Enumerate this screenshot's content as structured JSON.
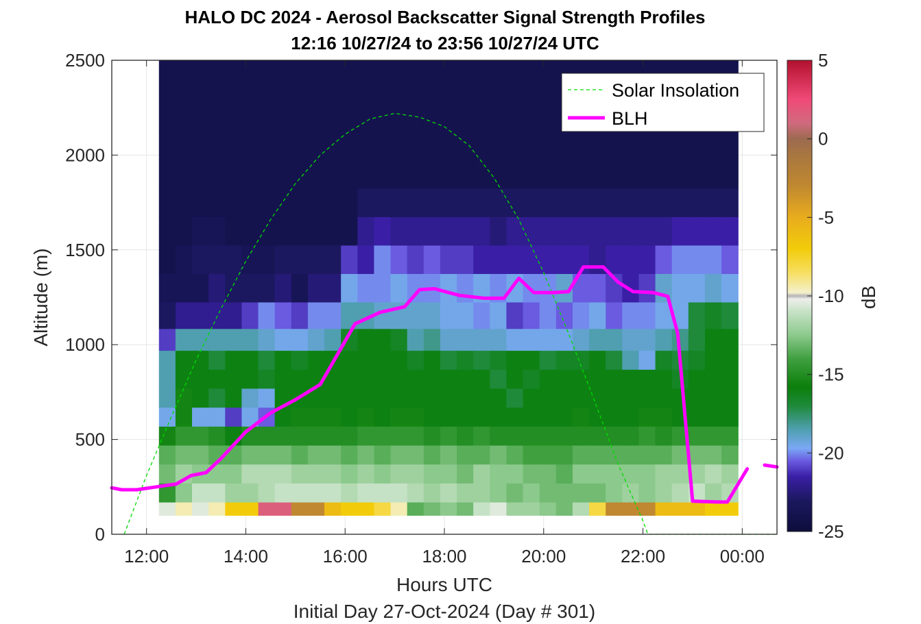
{
  "chart_data": {
    "type": "heatmap",
    "title": "HALO DC 2024 - Aerosol Backscatter Signal Strength Profiles",
    "subtitle": "12:16 10/27/24 to 23:56 10/27/24  UTC",
    "xlabel": "Hours UTC",
    "xlabel2": "Initial Day 27-Oct-2024 (Day # 301)",
    "ylabel": "Altitude (m)",
    "colorbar_label": "dB",
    "xlim_hours": [
      11.3,
      24.7
    ],
    "ylim": [
      0,
      2500
    ],
    "x_ticks": [
      {
        "v": 12,
        "label": "12:00"
      },
      {
        "v": 14,
        "label": "14:00"
      },
      {
        "v": 16,
        "label": "16:00"
      },
      {
        "v": 18,
        "label": "18:00"
      },
      {
        "v": 20,
        "label": "20:00"
      },
      {
        "v": 22,
        "label": "22:00"
      },
      {
        "v": 24,
        "label": "00:00"
      }
    ],
    "y_ticks": [
      {
        "v": 0,
        "label": "0"
      },
      {
        "v": 500,
        "label": "500"
      },
      {
        "v": 1000,
        "label": "1000"
      },
      {
        "v": 1500,
        "label": "1500"
      },
      {
        "v": 2000,
        "label": "2000"
      },
      {
        "v": 2500,
        "label": "2500"
      }
    ],
    "colorbar": {
      "range": [
        -25,
        5
      ],
      "ticks": [
        {
          "v": 5,
          "label": "5"
        },
        {
          "v": 0,
          "label": "0"
        },
        {
          "v": -5,
          "label": "-5"
        },
        {
          "v": -10,
          "label": "-10"
        },
        {
          "v": -15,
          "label": "-15"
        },
        {
          "v": -20,
          "label": "-20"
        },
        {
          "v": -25,
          "label": "-25"
        }
      ],
      "stops": [
        {
          "v": -25,
          "c": "#0d0d3c"
        },
        {
          "v": -23,
          "c": "#1c1860"
        },
        {
          "v": -21.5,
          "c": "#3a1fa6"
        },
        {
          "v": -20.5,
          "c": "#6a5be0"
        },
        {
          "v": -19.7,
          "c": "#7aa8f5"
        },
        {
          "v": -18.5,
          "c": "#4f9fb0"
        },
        {
          "v": -17,
          "c": "#1e8a3a"
        },
        {
          "v": -15.8,
          "c": "#0b7f0b"
        },
        {
          "v": -14,
          "c": "#40a040"
        },
        {
          "v": -12.5,
          "c": "#8cc98c"
        },
        {
          "v": -11,
          "c": "#c6e2c6"
        },
        {
          "v": -10.2,
          "c": "#eeeeea"
        },
        {
          "v": -10,
          "c": "#b4b4b4"
        },
        {
          "v": -9.8,
          "c": "#f4f0cc"
        },
        {
          "v": -8.5,
          "c": "#f6de60"
        },
        {
          "v": -7,
          "c": "#f2cc0a"
        },
        {
          "v": -5,
          "c": "#e8ac1e"
        },
        {
          "v": -3,
          "c": "#c08830"
        },
        {
          "v": -1,
          "c": "#a87640"
        },
        {
          "v": 0,
          "c": "#9c6a50"
        },
        {
          "v": 1,
          "c": "#d06a7e"
        },
        {
          "v": 2.5,
          "c": "#f04a78"
        },
        {
          "v": 5,
          "c": "#b2102e"
        }
      ]
    },
    "heatmap": {
      "x_start": 12.25,
      "x_step": 0.3333,
      "alt_levels": [
        120,
        220,
        320,
        420,
        520,
        620,
        720,
        820,
        920,
        1020,
        1150,
        1300,
        1450,
        1600,
        1750,
        1900,
        2050,
        2200,
        2350,
        2475
      ],
      "columns": [
        [
          -10.5,
          -14.5,
          -13,
          -13.5,
          -15.5,
          -19.5,
          -18.5,
          -18.5,
          -18.5,
          -21,
          -23,
          -23.5,
          -24,
          -24,
          -24,
          -24,
          -24,
          -24,
          -24,
          -24
        ],
        [
          -9.5,
          -12.5,
          -12,
          -13,
          -14.5,
          -15.5,
          -15.5,
          -16,
          -16,
          -18.5,
          -22,
          -23.5,
          -23.5,
          -24,
          -24,
          -24,
          -24,
          -24,
          -24,
          -24
        ],
        [
          -10.5,
          -11,
          -12.5,
          -13,
          -14.5,
          -19.5,
          -16,
          -16,
          -16,
          -18.5,
          -22,
          -23.5,
          -23,
          -23.5,
          -24,
          -24,
          -24,
          -24,
          -24,
          -24
        ],
        [
          -9.5,
          -11,
          -12.5,
          -13.5,
          -15,
          -19.5,
          -17,
          -16,
          -17,
          -18.5,
          -22,
          -22.5,
          -23,
          -23.5,
          -24,
          -24,
          -24,
          -24,
          -24,
          -24
        ],
        [
          -7,
          -12,
          -12.5,
          -13.5,
          -16,
          -21,
          -16,
          -16,
          -16,
          -18.5,
          -22,
          -23,
          -23,
          -24,
          -24,
          -24,
          -24,
          -24,
          -24,
          -24
        ],
        [
          -7,
          -12,
          -11.5,
          -13,
          -15,
          -19.5,
          -19,
          -16,
          -16,
          -18.5,
          -21,
          -23,
          -23.5,
          -24,
          -24,
          -24,
          -24,
          -24,
          -24,
          -24
        ],
        [
          1.5,
          -11.5,
          -11.5,
          -13,
          -15,
          -20.5,
          -19.5,
          -16.5,
          -17,
          -19,
          -20,
          -23,
          -23.5,
          -24,
          -24,
          -24,
          -24,
          -24,
          -24,
          -24
        ],
        [
          1.5,
          -11,
          -11.5,
          -13,
          -15,
          -16,
          -16,
          -16,
          -16,
          -19.5,
          -20.5,
          -22.5,
          -23,
          -24,
          -24,
          -24,
          -24,
          -24,
          -24,
          -24
        ],
        [
          -3,
          -11,
          -12,
          -13.5,
          -15,
          -15.5,
          -16,
          -16,
          -16.5,
          -19.5,
          -21,
          -23.5,
          -23,
          -24,
          -24,
          -24,
          -24,
          -24,
          -24,
          -24
        ],
        [
          -3,
          -11,
          -12,
          -13,
          -15,
          -15.5,
          -16,
          -16,
          -16,
          -19,
          -20,
          -22.5,
          -23,
          -24,
          -24,
          -24,
          -24,
          -24,
          -24,
          -24
        ],
        [
          -6,
          -11,
          -12,
          -13,
          -15,
          -15.5,
          -16,
          -16,
          -16,
          -18.5,
          -20,
          -22.5,
          -23,
          -24,
          -24,
          -24,
          -24,
          -24,
          -24,
          -24
        ],
        [
          -7,
          -11.5,
          -12.5,
          -13.5,
          -15,
          -16,
          -16,
          -16,
          -16,
          -16.5,
          -18.5,
          -19.5,
          -21,
          -24,
          -24,
          -24,
          -24,
          -24,
          -24,
          -24
        ],
        [
          -7,
          -11,
          -12,
          -13,
          -14.5,
          -15.5,
          -16,
          -16,
          -16,
          -16,
          -18.5,
          -20,
          -21.5,
          -22,
          -23,
          -24,
          -24,
          -24,
          -24,
          -24
        ],
        [
          -8,
          -11,
          -12.5,
          -13.5,
          -14.5,
          -16,
          -16,
          -16,
          -16,
          -16,
          -19,
          -20,
          -20,
          -21.5,
          -23,
          -24,
          -24,
          -24,
          -24,
          -24
        ],
        [
          -9.5,
          -11,
          -12,
          -13,
          -14.5,
          -15.5,
          -16,
          -16,
          -16,
          -16.5,
          -19,
          -19.5,
          -20.5,
          -22,
          -23,
          -24,
          -24,
          -24,
          -24,
          -24
        ],
        [
          -13.5,
          -11.5,
          -12,
          -13,
          -14.5,
          -15.5,
          -16,
          -16,
          -16.5,
          -18.5,
          -19,
          -20,
          -21,
          -22,
          -23,
          -24,
          -24,
          -24,
          -24,
          -24
        ],
        [
          -13,
          -12,
          -12.5,
          -13.5,
          -15,
          -16,
          -16,
          -16,
          -16,
          -18,
          -19,
          -20,
          -20.5,
          -22,
          -23,
          -24,
          -24,
          -24,
          -24,
          -24
        ],
        [
          -12.5,
          -11.5,
          -12.5,
          -13,
          -14.5,
          -16,
          -16,
          -16,
          -17,
          -19,
          -19.5,
          -19.5,
          -21,
          -22,
          -23,
          -24,
          -24,
          -24,
          -24,
          -24
        ],
        [
          -13,
          -12,
          -13,
          -13.5,
          -15,
          -16,
          -16,
          -16,
          -16.5,
          -19,
          -19.5,
          -20,
          -21,
          -22,
          -23,
          -24,
          -24,
          -24,
          -24,
          -24
        ],
        [
          -11,
          -12,
          -12,
          -13.5,
          -14.5,
          -16,
          -16,
          -16,
          -17,
          -19,
          -20,
          -19.5,
          -21.5,
          -22,
          -23,
          -24,
          -24,
          -24,
          -24,
          -24
        ],
        [
          -10.5,
          -12.5,
          -12.5,
          -13,
          -15,
          -16,
          -16,
          -17,
          -16.5,
          -19,
          -19.5,
          -20,
          -21.5,
          -22.5,
          -23,
          -24,
          -24,
          -24,
          -24,
          -24
        ],
        [
          -12,
          -13,
          -12.5,
          -13.5,
          -15,
          -16,
          -17,
          -16,
          -16,
          -19.5,
          -21,
          -19.5,
          -21.5,
          -22,
          -23,
          -24,
          -24,
          -24,
          -24,
          -24
        ],
        [
          -12,
          -12.5,
          -13,
          -14,
          -15,
          -16,
          -16,
          -16.5,
          -16,
          -19.5,
          -20.5,
          -20,
          -21.5,
          -22,
          -23,
          -24,
          -24,
          -24,
          -24,
          -24
        ],
        [
          -12.5,
          -13,
          -13,
          -14,
          -15,
          -16,
          -16,
          -16,
          -17,
          -19.5,
          -20,
          -20,
          -21.5,
          -22,
          -23,
          -24,
          -24,
          -24,
          -24,
          -24
        ],
        [
          -13,
          -13,
          -13.5,
          -14,
          -15,
          -16,
          -16,
          -16,
          -16.5,
          -19.5,
          -20.5,
          -19,
          -21.5,
          -22,
          -23,
          -24,
          -24,
          -24,
          -24,
          -24
        ],
        [
          -11.5,
          -13,
          -12.5,
          -13.5,
          -15,
          -15.5,
          -16,
          -16,
          -16.5,
          -19,
          -20,
          -20.5,
          -21.5,
          -22,
          -23,
          -24,
          -24,
          -24,
          -24,
          -24
        ],
        [
          -8,
          -13,
          -12.5,
          -13.5,
          -15,
          -16,
          -16,
          -16,
          -16,
          -18.5,
          -19.5,
          -20.5,
          -22,
          -22,
          -23,
          -24,
          -24,
          -24,
          -24,
          -24
        ],
        [
          -3,
          -12.5,
          -12.5,
          -13.5,
          -15,
          -16,
          -16,
          -16,
          -17,
          -18.5,
          -20.5,
          -21,
          -21.5,
          -22,
          -23,
          -24,
          -24,
          -24,
          -24,
          -24
        ],
        [
          -3,
          -12,
          -12.5,
          -13.5,
          -15,
          -16,
          -16,
          -16,
          -18.5,
          -19,
          -20,
          -21.5,
          -21.5,
          -22,
          -23,
          -24,
          -24,
          -24,
          -24,
          -24
        ],
        [
          -3,
          -12.5,
          -12.5,
          -13.5,
          -14.5,
          -15.5,
          -16,
          -16,
          -19.5,
          -19,
          -20,
          -21,
          -21.5,
          -22,
          -23,
          -24,
          -24,
          -24,
          -24,
          -24
        ],
        [
          -6,
          -12,
          -12,
          -13.5,
          -15,
          -15.5,
          -16,
          -16,
          -16.5,
          -18.5,
          -19.5,
          -19,
          -20.5,
          -22,
          -23,
          -24,
          -24,
          -24,
          -24,
          -24
        ],
        [
          -6,
          -11.5,
          -12,
          -13,
          -14.5,
          -16,
          -16,
          -16.5,
          -17,
          -18,
          -19.5,
          -19.5,
          -20,
          -21.5,
          -23,
          -24,
          -24,
          -24,
          -24,
          -24
        ],
        [
          -6,
          -11,
          -12,
          -13,
          -14.5,
          -16,
          -16,
          -16,
          -16.5,
          -17,
          -17,
          -19.5,
          -20,
          -21.5,
          -23,
          -24,
          -24,
          -24,
          -24,
          -24
        ],
        [
          -7,
          -12,
          -11.5,
          -13,
          -14.5,
          -16,
          -16,
          -16,
          -16,
          -16,
          -16.5,
          -19,
          -20,
          -21.5,
          -23,
          -24,
          -24,
          -24,
          -24,
          -24
        ],
        [
          -7,
          -11.5,
          -12,
          -13.5,
          -14.5,
          -16,
          -16,
          -16,
          -16,
          -16,
          -17,
          -19.5,
          -20.5,
          -21.5,
          -23,
          -24,
          -24,
          -24,
          -24,
          -24
        ]
      ]
    },
    "series": [
      {
        "name": "Solar Insolation",
        "color": "#00dd00",
        "style": "dashed",
        "x": [
          11.55,
          12.0,
          12.5,
          13.0,
          13.5,
          14.0,
          14.5,
          15.0,
          15.5,
          16.0,
          16.5,
          17.0,
          17.5,
          18.0,
          18.5,
          19.0,
          19.5,
          20.0,
          20.5,
          21.0,
          21.5,
          22.0,
          22.1,
          24.7
        ],
        "y": [
          0,
          310,
          620,
          920,
          1190,
          1440,
          1660,
          1850,
          2000,
          2110,
          2190,
          2220,
          2200,
          2150,
          2050,
          1880,
          1660,
          1380,
          1060,
          720,
          370,
          70,
          0,
          0
        ]
      },
      {
        "name": "BLH",
        "color": "#ff00ff",
        "style": "solid",
        "segments": [
          {
            "x": [
              11.3,
              11.5,
              11.8,
              12.2,
              12.6,
              12.9,
              13.2,
              13.5,
              14.0,
              14.5,
              15.0,
              15.5,
              16.2,
              16.7,
              17.2,
              17.5,
              17.8,
              18.3,
              18.8,
              19.2,
              19.5,
              19.8,
              20.2,
              20.5,
              20.8,
              21.2,
              21.5,
              21.8,
              22.2,
              22.5,
              22.7,
              23.0,
              23.5,
              23.7,
              24.1
            ],
            "y": [
              245,
              235,
              235,
              250,
              265,
              310,
              325,
              400,
              540,
              640,
              710,
              790,
              1110,
              1170,
              1200,
              1290,
              1295,
              1260,
              1245,
              1245,
              1350,
              1275,
              1275,
              1280,
              1410,
              1410,
              1330,
              1280,
              1275,
              1255,
              1060,
              175,
              170,
              170,
              345
            ]
          },
          {
            "x": [
              24.45,
              24.7
            ],
            "y": [
              365,
              355
            ]
          }
        ]
      }
    ],
    "legend": {
      "placement": "top-right",
      "entries": [
        {
          "label": "Solar Insolation",
          "color": "#00dd00",
          "style": "dashed"
        },
        {
          "label": "BLH",
          "color": "#ff00ff",
          "style": "solid"
        }
      ]
    },
    "grid": true
  }
}
